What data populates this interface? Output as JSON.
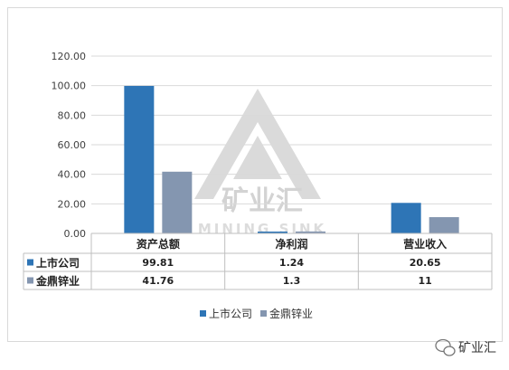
{
  "chart_data": {
    "type": "bar",
    "categories": [
      "资产总额",
      "净利润",
      "营业收入"
    ],
    "series": [
      {
        "name": "上市公司",
        "values": [
          99.81,
          1.24,
          20.65
        ],
        "labels": [
          "99.81",
          "1.24",
          "20.65"
        ],
        "color": "#2e75b6"
      },
      {
        "name": "金鼎锌业",
        "values": [
          41.76,
          1.3,
          11
        ],
        "labels": [
          "41.76",
          "1.3",
          "11"
        ],
        "color": "#8496b0"
      }
    ],
    "ylim": [
      0,
      120
    ],
    "yticks": [
      "0.00",
      "20.00",
      "40.00",
      "60.00",
      "80.00",
      "100.00",
      "120.00"
    ],
    "grid": true,
    "legend_position": "bottom",
    "data_table": true
  },
  "watermark": {
    "text_cn": "矿业汇",
    "text_en": "MINING SINK",
    "color": "#c8c8c8"
  },
  "branding": {
    "icon": "wechat-icon",
    "text": "矿业汇"
  }
}
